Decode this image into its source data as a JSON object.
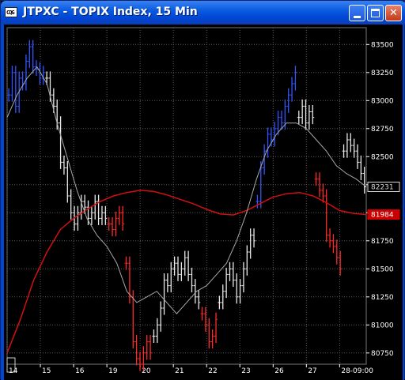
{
  "window": {
    "title": "JTPXC - TOPIX Index, 15 Min",
    "icon_text": "CQG",
    "minimize_label": "",
    "maximize_label": "",
    "close_label": "✕"
  },
  "colors": {
    "background": "#000000",
    "grid": "#5a5a5a",
    "up_bars": "#3355ff",
    "mid_bars": "#e8e8e8",
    "down_bars": "#ff2a2a",
    "slow_ma": "#d01010",
    "fast_ma": "#a8a8a8",
    "axis_text": "#ffffff",
    "last_price_box": "#d8d8d8",
    "ma_price_box": "#cc0000"
  },
  "chart_data": {
    "type": "line",
    "title": "",
    "xlabel": "",
    "ylabel": "",
    "ylim": [
      80650,
      83650
    ],
    "grid": true,
    "y_ticks": [
      83500,
      83250,
      83000,
      82750,
      82500,
      82250,
      82000,
      81750,
      81500,
      81250,
      81000,
      80750
    ],
    "x_ticks": [
      "14",
      "15",
      "16",
      "19",
      "20",
      "21",
      "22",
      "23",
      "26",
      "27",
      "28-09:00"
    ],
    "x_range": [
      0,
      108
    ],
    "x_tick_positions": [
      0,
      10,
      20,
      30,
      40,
      50,
      60,
      70,
      80,
      90,
      100
    ],
    "price_labels": [
      {
        "value": 82231,
        "text": "82231",
        "kind": "last"
      },
      {
        "value": 81984,
        "text": "81984",
        "kind": "ma"
      }
    ],
    "bar_segments": [
      {
        "color_key": "up_bars",
        "closes": [
          83050,
          83250,
          82950,
          83200,
          83150,
          83350,
          83480,
          83300,
          83280,
          83200,
          83250
        ]
      },
      {
        "color_key": "mid_bars",
        "closes": [
          83200,
          83050,
          82950,
          82800,
          82450,
          82400,
          82150,
          82000,
          81900,
          82000,
          82100,
          82050,
          81950,
          82000,
          82100,
          81950,
          82000,
          81950
        ]
      },
      {
        "color_key": "down_bars",
        "closes": [
          81900,
          81850,
          81950,
          82000,
          81900
        ]
      },
      {
        "color_key": "down_bars",
        "closes": [
          81550,
          81250,
          80850,
          80700,
          80650,
          80750,
          80850,
          80750
        ]
      },
      {
        "color_key": "mid_bars",
        "closes": [
          80900,
          81000,
          81150,
          81400,
          81350,
          81500,
          81550,
          81450,
          81500,
          81600,
          81450,
          81350,
          81250,
          81200
        ]
      },
      {
        "color_key": "down_bars",
        "closes": [
          81100,
          81000,
          80850,
          80900,
          81050
        ]
      },
      {
        "color_key": "mid_bars",
        "closes": [
          81200,
          81300,
          81450,
          81500,
          81400,
          81250,
          81350,
          81500,
          81650,
          81800,
          81750
        ]
      },
      {
        "color_key": "up_bars",
        "closes": [
          82100,
          82400,
          82550,
          82700,
          82650,
          82750,
          82850,
          82800,
          82950,
          83050,
          83150,
          83250
        ]
      },
      {
        "color_key": "mid_bars",
        "closes": [
          82850,
          82950,
          82800,
          82900,
          82850
        ]
      },
      {
        "color_key": "down_bars",
        "closes": [
          82300,
          82200,
          82150,
          81800,
          81750,
          81700,
          81600,
          81500
        ]
      },
      {
        "color_key": "mid_bars",
        "closes": [
          82550,
          82650,
          82600,
          82550,
          82450,
          82350,
          82231
        ]
      }
    ],
    "series": [
      {
        "color_key": "slow_ma",
        "points": [
          [
            0,
            80750
          ],
          [
            4,
            81050
          ],
          [
            8,
            81400
          ],
          [
            12,
            81650
          ],
          [
            16,
            81850
          ],
          [
            20,
            81950
          ],
          [
            24,
            82030
          ],
          [
            28,
            82100
          ],
          [
            32,
            82150
          ],
          [
            36,
            82180
          ],
          [
            40,
            82200
          ],
          [
            44,
            82190
          ],
          [
            48,
            82160
          ],
          [
            52,
            82120
          ],
          [
            56,
            82080
          ],
          [
            60,
            82030
          ],
          [
            64,
            81990
          ],
          [
            68,
            81980
          ],
          [
            72,
            82020
          ],
          [
            76,
            82080
          ],
          [
            80,
            82140
          ],
          [
            84,
            82170
          ],
          [
            88,
            82180
          ],
          [
            92,
            82150
          ],
          [
            96,
            82090
          ],
          [
            100,
            82020
          ],
          [
            104,
            81995
          ],
          [
            108,
            81984
          ]
        ]
      },
      {
        "color_key": "fast_ma",
        "points": [
          [
            0,
            82850
          ],
          [
            3,
            83050
          ],
          [
            6,
            83200
          ],
          [
            9,
            83300
          ],
          [
            12,
            83150
          ],
          [
            15,
            82800
          ],
          [
            18,
            82500
          ],
          [
            21,
            82200
          ],
          [
            24,
            81950
          ],
          [
            27,
            81800
          ],
          [
            30,
            81700
          ],
          [
            33,
            81550
          ],
          [
            36,
            81300
          ],
          [
            39,
            81200
          ],
          [
            42,
            81250
          ],
          [
            45,
            81300
          ],
          [
            48,
            81200
          ],
          [
            51,
            81100
          ],
          [
            54,
            81200
          ],
          [
            57,
            81300
          ],
          [
            60,
            81350
          ],
          [
            63,
            81450
          ],
          [
            66,
            81550
          ],
          [
            69,
            81750
          ],
          [
            72,
            82000
          ],
          [
            75,
            82300
          ],
          [
            78,
            82550
          ],
          [
            81,
            82700
          ],
          [
            84,
            82800
          ],
          [
            87,
            82800
          ],
          [
            90,
            82750
          ],
          [
            93,
            82650
          ],
          [
            96,
            82550
          ],
          [
            99,
            82420
          ],
          [
            102,
            82350
          ],
          [
            105,
            82300
          ],
          [
            108,
            82231
          ]
        ]
      }
    ]
  }
}
